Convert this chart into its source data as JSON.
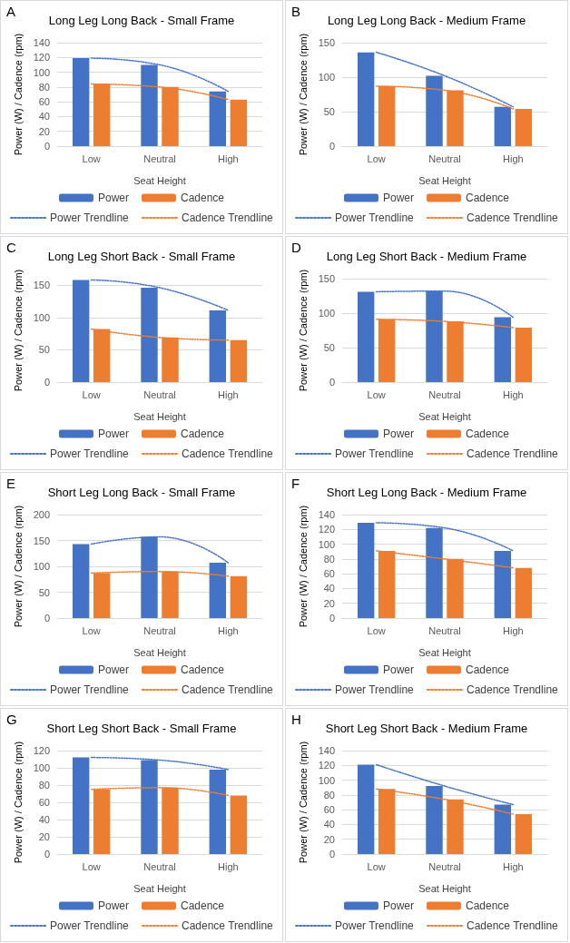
{
  "chart_data": [
    {
      "type": "bar",
      "title": "Long Leg Long Back - Small Frame",
      "annotations": [
        "A"
      ],
      "xlabel": "Seat Height",
      "ylabel": "Power (W) / Cadence (rpm)",
      "categories": [
        "Low",
        "Neutral",
        "High"
      ],
      "ylim": [
        0,
        140
      ],
      "yticks": [
        0,
        20,
        40,
        60,
        80,
        100,
        120,
        140
      ],
      "grid": "y",
      "legend": "bottom",
      "series": [
        {
          "name": "Power",
          "color": "#4472c4",
          "values": [
            119,
            110,
            74
          ]
        },
        {
          "name": "Cadence",
          "color": "#ed7d31",
          "values": [
            84,
            80,
            63
          ]
        },
        {
          "name": "Power Trendline",
          "type": "line",
          "color": "#4472c4",
          "line_style": "dotted",
          "marker": "none",
          "values": [
            119,
            110,
            74
          ]
        },
        {
          "name": "Cadence Trendline",
          "type": "line",
          "color": "#ed7d31",
          "line_style": "dotted",
          "marker": "none",
          "values": [
            84,
            80,
            63
          ]
        }
      ]
    },
    {
      "type": "bar",
      "title": "Long Leg Long Back - Medium Frame",
      "annotations": [
        "B"
      ],
      "xlabel": "Seat Height",
      "ylabel": "Power (W) / Cadence (rpm)",
      "categories": [
        "Low",
        "Neutral",
        "High"
      ],
      "ylim": [
        0,
        150
      ],
      "yticks": [
        0,
        50,
        100,
        150
      ],
      "grid": "y",
      "legend": "bottom",
      "series": [
        {
          "name": "Power",
          "color": "#4472c4",
          "values": [
            136,
            102,
            57
          ]
        },
        {
          "name": "Cadence",
          "color": "#ed7d31",
          "values": [
            87,
            81,
            54
          ]
        },
        {
          "name": "Power Trendline",
          "type": "line",
          "color": "#4472c4",
          "line_style": "dotted",
          "marker": "none",
          "values": [
            136,
            102,
            57
          ]
        },
        {
          "name": "Cadence Trendline",
          "type": "line",
          "color": "#ed7d31",
          "line_style": "dotted",
          "marker": "none",
          "values": [
            87,
            81,
            54
          ]
        }
      ]
    },
    {
      "type": "bar",
      "title": "Long Leg Short Back - Small Frame",
      "annotations": [
        "C"
      ],
      "xlabel": "Seat Height",
      "ylabel": "Power (W) / Cadence (rpm)",
      "categories": [
        "Low",
        "Neutral",
        "High"
      ],
      "ylim": [
        0,
        160
      ],
      "yticks": [
        0,
        50,
        100,
        150
      ],
      "grid": "y",
      "legend": "bottom",
      "series": [
        {
          "name": "Power",
          "color": "#4472c4",
          "values": [
            158,
            146,
            111
          ]
        },
        {
          "name": "Cadence",
          "color": "#ed7d31",
          "values": [
            82,
            69,
            65
          ]
        },
        {
          "name": "Power Trendline",
          "type": "line",
          "color": "#4472c4",
          "line_style": "dotted",
          "marker": "none",
          "values": [
            158,
            146,
            111
          ]
        },
        {
          "name": "Cadence Trendline",
          "type": "line",
          "color": "#ed7d31",
          "line_style": "dotted",
          "marker": "none",
          "values": [
            82,
            69,
            65
          ]
        }
      ]
    },
    {
      "type": "bar",
      "title": "Long Leg Short Back - Medium Frame",
      "annotations": [
        "D"
      ],
      "xlabel": "Seat Height",
      "ylabel": "Power (W) / Cadence (rpm)",
      "categories": [
        "Low",
        "Neutral",
        "High"
      ],
      "ylim": [
        0,
        150
      ],
      "yticks": [
        0,
        50,
        100,
        150
      ],
      "grid": "y",
      "legend": "bottom",
      "series": [
        {
          "name": "Power",
          "color": "#4472c4",
          "values": [
            131,
            132,
            94
          ]
        },
        {
          "name": "Cadence",
          "color": "#ed7d31",
          "values": [
            91,
            88,
            79
          ]
        },
        {
          "name": "Power Trendline",
          "type": "line",
          "color": "#4472c4",
          "line_style": "dotted",
          "marker": "none",
          "values": [
            131,
            132,
            94
          ]
        },
        {
          "name": "Cadence Trendline",
          "type": "line",
          "color": "#ed7d31",
          "line_style": "dotted",
          "marker": "none",
          "values": [
            91,
            88,
            79
          ]
        }
      ]
    },
    {
      "type": "bar",
      "title": "Short Leg Long Back - Small Frame",
      "annotations": [
        "E"
      ],
      "xlabel": "Seat Height",
      "ylabel": "Power (W) / Cadence (rpm)",
      "categories": [
        "Low",
        "Neutral",
        "High"
      ],
      "ylim": [
        0,
        200
      ],
      "yticks": [
        0,
        50,
        100,
        150,
        200
      ],
      "grid": "y",
      "legend": "bottom",
      "series": [
        {
          "name": "Power",
          "color": "#4472c4",
          "values": [
            143,
            157,
            107
          ]
        },
        {
          "name": "Cadence",
          "color": "#ed7d31",
          "values": [
            87,
            90,
            81
          ]
        },
        {
          "name": "Power Trendline",
          "type": "line",
          "color": "#4472c4",
          "line_style": "dotted",
          "marker": "none",
          "values": [
            143,
            157,
            107
          ]
        },
        {
          "name": "Cadence Trendline",
          "type": "line",
          "color": "#ed7d31",
          "line_style": "dotted",
          "marker": "none",
          "values": [
            87,
            90,
            81
          ]
        }
      ]
    },
    {
      "type": "bar",
      "title": "Short Leg Long Back - Medium Frame",
      "annotations": [
        "F"
      ],
      "xlabel": "Seat Height",
      "ylabel": "Power (W) / Cadence (rpm)",
      "categories": [
        "Low",
        "Neutral",
        "High"
      ],
      "ylim": [
        0,
        140
      ],
      "yticks": [
        0,
        20,
        40,
        60,
        80,
        100,
        120,
        140
      ],
      "grid": "y",
      "legend": "bottom",
      "series": [
        {
          "name": "Power",
          "color": "#4472c4",
          "values": [
            129,
            122,
            91
          ]
        },
        {
          "name": "Cadence",
          "color": "#ed7d31",
          "values": [
            91,
            80,
            68
          ]
        },
        {
          "name": "Power Trendline",
          "type": "line",
          "color": "#4472c4",
          "line_style": "dotted",
          "marker": "none",
          "values": [
            129,
            122,
            91
          ]
        },
        {
          "name": "Cadence Trendline",
          "type": "line",
          "color": "#ed7d31",
          "line_style": "dotted",
          "marker": "none",
          "values": [
            91,
            80,
            68
          ]
        }
      ]
    },
    {
      "type": "bar",
      "title": "Short Leg Short Back - Small Frame",
      "annotations": [
        "G"
      ],
      "xlabel": "Seat Height",
      "ylabel": "Power (W) / Cadence (rpm)",
      "categories": [
        "Low",
        "Neutral",
        "High"
      ],
      "ylim": [
        0,
        120
      ],
      "yticks": [
        0,
        20,
        40,
        60,
        80,
        100,
        120
      ],
      "grid": "y",
      "legend": "bottom",
      "series": [
        {
          "name": "Power",
          "color": "#4472c4",
          "values": [
            112,
            109,
            98
          ]
        },
        {
          "name": "Cadence",
          "color": "#ed7d31",
          "values": [
            75,
            77,
            68
          ]
        },
        {
          "name": "Power Trendline",
          "type": "line",
          "color": "#4472c4",
          "line_style": "dotted",
          "marker": "none",
          "values": [
            112,
            109,
            98
          ]
        },
        {
          "name": "Cadence Trendline",
          "type": "line",
          "color": "#ed7d31",
          "line_style": "dotted",
          "marker": "none",
          "values": [
            75,
            77,
            68
          ]
        }
      ]
    },
    {
      "type": "bar",
      "title": "Short Leg Short Back - Medium Frame",
      "annotations": [
        "H"
      ],
      "xlabel": "Seat Height",
      "ylabel": "Power (W) / Cadence (rpm)",
      "categories": [
        "Low",
        "Neutral",
        "High"
      ],
      "ylim": [
        0,
        140
      ],
      "yticks": [
        0,
        20,
        40,
        60,
        80,
        100,
        120,
        140
      ],
      "grid": "y",
      "legend": "bottom",
      "series": [
        {
          "name": "Power",
          "color": "#4472c4",
          "values": [
            121,
            92,
            67
          ]
        },
        {
          "name": "Cadence",
          "color": "#ed7d31",
          "values": [
            88,
            74,
            54
          ]
        },
        {
          "name": "Power Trendline",
          "type": "line",
          "color": "#4472c4",
          "line_style": "dotted",
          "marker": "none",
          "values": [
            121,
            92,
            67
          ]
        },
        {
          "name": "Cadence Trendline",
          "type": "line",
          "color": "#ed7d31",
          "line_style": "dotted",
          "marker": "none",
          "values": [
            88,
            74,
            54
          ]
        }
      ]
    }
  ]
}
